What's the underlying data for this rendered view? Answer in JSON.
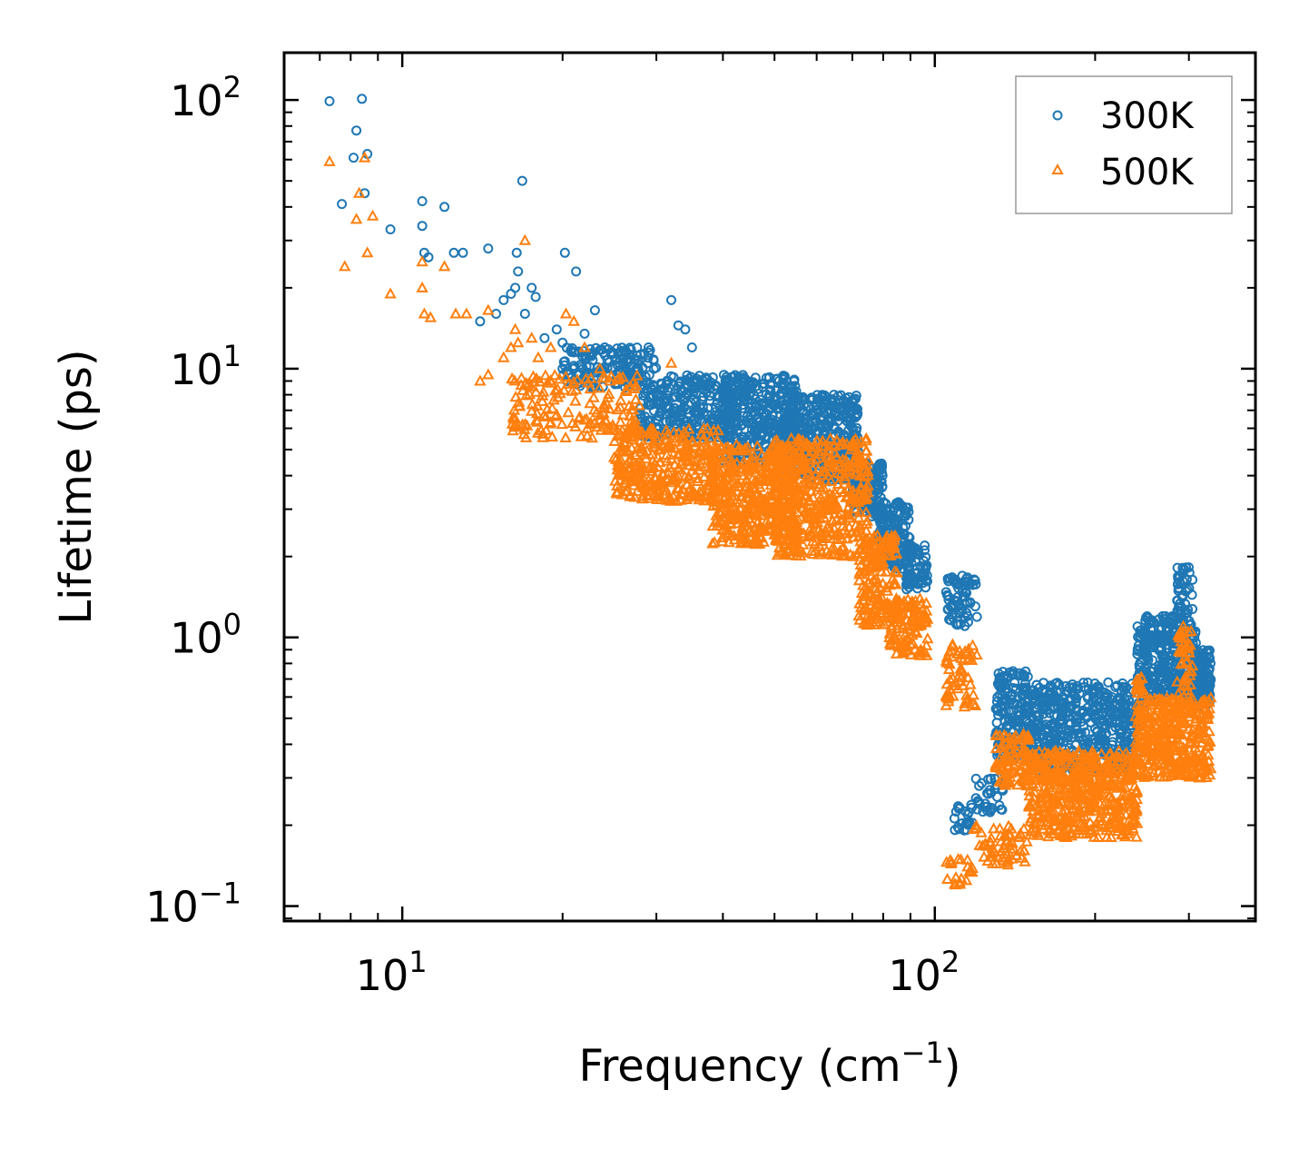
{
  "chart_data": {
    "type": "scatter",
    "title": "",
    "xlabel": "Frequency (cm",
    "xlabel_sup": "−1",
    "xlabel_end": ")",
    "ylabel": "Lifetime (ps)",
    "xscale": "log",
    "yscale": "log",
    "xlim": [
      6,
      400
    ],
    "ylim": [
      0.088,
      150
    ],
    "x_ticks": [
      {
        "value": 10,
        "base": "10",
        "exp": "1"
      },
      {
        "value": 100,
        "base": "10",
        "exp": "2"
      }
    ],
    "y_ticks": [
      {
        "value": 0.1,
        "base": "10",
        "exp": "−1"
      },
      {
        "value": 1,
        "base": "10",
        "exp": "0"
      },
      {
        "value": 10,
        "base": "10",
        "exp": "1"
      },
      {
        "value": 100,
        "base": "10",
        "exp": "2"
      }
    ],
    "legend_position": "top-right",
    "series": [
      {
        "name": "300K",
        "marker": "circle",
        "color": "#1f77b4",
        "points": [
          [
            7.3,
            99
          ],
          [
            8.4,
            101
          ],
          [
            8.2,
            77
          ],
          [
            8.1,
            61
          ],
          [
            8.6,
            63
          ],
          [
            7.7,
            41
          ],
          [
            8.5,
            45
          ],
          [
            9.5,
            33
          ],
          [
            10.9,
            42
          ],
          [
            10.9,
            34
          ],
          [
            11.0,
            27
          ],
          [
            11.2,
            26
          ],
          [
            12.0,
            40
          ],
          [
            12.5,
            27
          ],
          [
            13.0,
            27
          ],
          [
            14.5,
            28
          ],
          [
            16.4,
            27
          ],
          [
            16.8,
            50
          ],
          [
            20.2,
            27
          ],
          [
            21.2,
            23
          ],
          [
            14.0,
            15
          ],
          [
            15.0,
            16
          ],
          [
            15.5,
            18
          ],
          [
            16.0,
            19
          ],
          [
            16.3,
            20
          ],
          [
            16.5,
            23
          ],
          [
            17.5,
            20
          ],
          [
            17.8,
            18.5
          ],
          [
            17.0,
            16
          ],
          [
            18.5,
            13
          ],
          [
            19.5,
            14
          ],
          [
            20.0,
            12.5
          ],
          [
            21.0,
            11.5
          ],
          [
            22.0,
            13.5
          ],
          [
            23.0,
            16.5
          ],
          [
            24.0,
            12
          ],
          [
            20.0,
            10
          ],
          [
            21.5,
            9.5
          ],
          [
            32.0,
            18
          ],
          [
            33.0,
            14.5
          ],
          [
            34.0,
            14
          ],
          [
            35.0,
            12
          ],
          [
            29.0,
            12
          ],
          [
            26.0,
            11
          ]
        ],
        "bands": [
          {
            "x0": 20,
            "x1": 30,
            "y0": 8.5,
            "y1": 12,
            "n": 160
          },
          {
            "x0": 28,
            "x1": 42,
            "y0": 5.5,
            "y1": 9.5,
            "n": 300
          },
          {
            "x0": 40,
            "x1": 55,
            "y0": 4.5,
            "y1": 9.5,
            "n": 380
          },
          {
            "x0": 52,
            "x1": 72,
            "y0": 3.8,
            "y1": 8.0,
            "n": 400
          },
          {
            "x0": 70,
            "x1": 80,
            "y0": 2.8,
            "y1": 4.5,
            "n": 140
          },
          {
            "x0": 78,
            "x1": 90,
            "y0": 1.8,
            "y1": 3.2,
            "n": 140
          },
          {
            "x0": 88,
            "x1": 97,
            "y0": 1.5,
            "y1": 2.2,
            "n": 70
          },
          {
            "x0": 105,
            "x1": 120,
            "y0": 1.1,
            "y1": 1.7,
            "n": 70
          },
          {
            "x0": 108,
            "x1": 118,
            "y0": 0.19,
            "y1": 0.24,
            "n": 22
          },
          {
            "x0": 118,
            "x1": 135,
            "y0": 0.22,
            "y1": 0.3,
            "n": 35
          },
          {
            "x0": 130,
            "x1": 150,
            "y0": 0.35,
            "y1": 0.75,
            "n": 160
          },
          {
            "x0": 150,
            "x1": 240,
            "y0": 0.32,
            "y1": 0.68,
            "n": 520
          },
          {
            "x0": 240,
            "x1": 248,
            "y0": 0.45,
            "y1": 1.1,
            "n": 60
          },
          {
            "x0": 248,
            "x1": 310,
            "y0": 0.6,
            "y1": 1.2,
            "n": 300
          },
          {
            "x0": 285,
            "x1": 305,
            "y0": 1.2,
            "y1": 1.85,
            "n": 40
          },
          {
            "x0": 305,
            "x1": 330,
            "y0": 0.55,
            "y1": 0.9,
            "n": 110
          }
        ]
      },
      {
        "name": "500K",
        "marker": "triangle",
        "color": "#ff7f0e",
        "points": [
          [
            7.3,
            59
          ],
          [
            8.5,
            61
          ],
          [
            8.3,
            45
          ],
          [
            8.8,
            37
          ],
          [
            8.2,
            36
          ],
          [
            7.8,
            24
          ],
          [
            8.6,
            27
          ],
          [
            9.5,
            19
          ],
          [
            10.9,
            25
          ],
          [
            10.9,
            20
          ],
          [
            11.0,
            16
          ],
          [
            11.3,
            15.5
          ],
          [
            12.0,
            24
          ],
          [
            12.6,
            16
          ],
          [
            13.2,
            16
          ],
          [
            14.5,
            16.5
          ],
          [
            16.3,
            14
          ],
          [
            17.0,
            30
          ],
          [
            20.3,
            16
          ],
          [
            14.0,
            9
          ],
          [
            14.5,
            9.5
          ],
          [
            15.5,
            11
          ],
          [
            16.0,
            12
          ],
          [
            16.5,
            12.5
          ],
          [
            17.5,
            13
          ],
          [
            18.0,
            11
          ],
          [
            19.0,
            12
          ],
          [
            21.0,
            15
          ],
          [
            22.0,
            12
          ],
          [
            23.5,
            10
          ],
          [
            32.0,
            10.5
          ]
        ],
        "bands": [
          {
            "x0": 16,
            "x1": 28,
            "y0": 5.5,
            "y1": 9.5,
            "n": 160
          },
          {
            "x0": 25,
            "x1": 40,
            "y0": 3.2,
            "y1": 6.0,
            "n": 320
          },
          {
            "x0": 38,
            "x1": 55,
            "y0": 2.2,
            "y1": 5.2,
            "n": 420
          },
          {
            "x0": 50,
            "x1": 75,
            "y0": 2.0,
            "y1": 5.5,
            "n": 460
          },
          {
            "x0": 72,
            "x1": 85,
            "y0": 1.1,
            "y1": 2.4,
            "n": 170
          },
          {
            "x0": 82,
            "x1": 97,
            "y0": 0.85,
            "y1": 1.4,
            "n": 110
          },
          {
            "x0": 105,
            "x1": 120,
            "y0": 0.55,
            "y1": 0.95,
            "n": 60
          },
          {
            "x0": 105,
            "x1": 118,
            "y0": 0.12,
            "y1": 0.15,
            "n": 20
          },
          {
            "x0": 118,
            "x1": 150,
            "y0": 0.14,
            "y1": 0.2,
            "n": 60
          },
          {
            "x0": 130,
            "x1": 150,
            "y0": 0.28,
            "y1": 0.45,
            "n": 90
          },
          {
            "x0": 150,
            "x1": 240,
            "y0": 0.18,
            "y1": 0.38,
            "n": 520
          },
          {
            "x0": 238,
            "x1": 248,
            "y0": 0.3,
            "y1": 0.75,
            "n": 60
          },
          {
            "x0": 248,
            "x1": 330,
            "y0": 0.3,
            "y1": 0.6,
            "n": 330
          },
          {
            "x0": 285,
            "x1": 305,
            "y0": 0.55,
            "y1": 1.15,
            "n": 50
          }
        ]
      }
    ]
  }
}
